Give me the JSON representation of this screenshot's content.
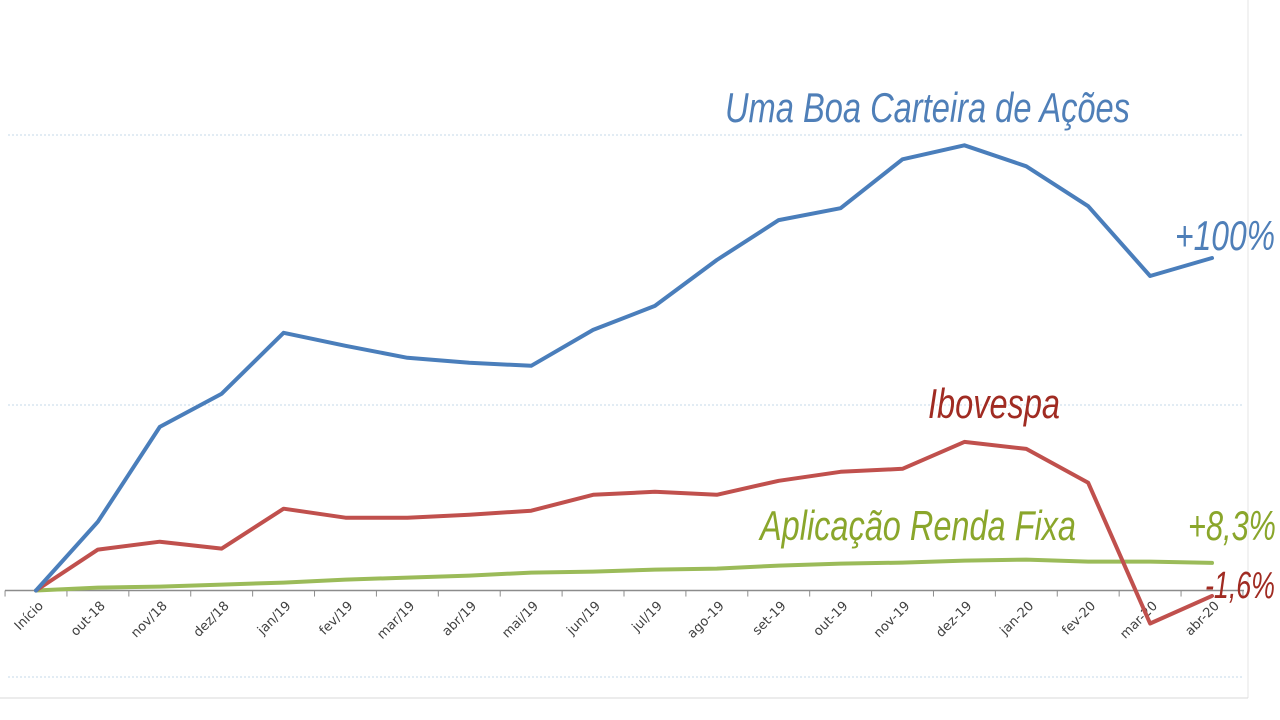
{
  "chart_data": {
    "type": "line",
    "categories": [
      "Início",
      "out-18",
      "nov/18",
      "dez/18",
      "jan/19",
      "fev/19",
      "mar/19",
      "abr/19",
      "mai/19",
      "jun/19",
      "jul/19",
      "ago-19",
      "set-19",
      "out-19",
      "nov-19",
      "dez-19",
      "jan-20",
      "fev-20",
      "mar-20",
      "abr-20"
    ],
    "series": [
      {
        "name": "Uma Boa Carteira de Ações",
        "color": "#4a7ebb",
        "values": [
          0,
          20.7,
          49.2,
          59.2,
          77.5,
          73.6,
          70.0,
          68.5,
          67.6,
          78.4,
          85.6,
          99.4,
          111.4,
          115.0,
          129.7,
          133.9,
          127.6,
          115.6,
          94.6,
          100
        ]
      },
      {
        "name": "Ibovespa",
        "color": "#c0504d",
        "values": [
          0,
          12.3,
          14.7,
          12.6,
          24.6,
          21.9,
          21.9,
          22.8,
          24.0,
          28.8,
          29.7,
          28.8,
          33.0,
          35.7,
          36.6,
          44.7,
          42.6,
          32.4,
          -9.9,
          -1.6
        ]
      },
      {
        "name": "Aplicação Renda Fixa",
        "color": "#9bbb59",
        "values": [
          0,
          0.9,
          1.2,
          1.8,
          2.4,
          3.3,
          3.9,
          4.5,
          5.4,
          5.7,
          6.3,
          6.6,
          7.5,
          8.1,
          8.4,
          9.0,
          9.3,
          8.7,
          8.7,
          8.3
        ]
      }
    ],
    "end_labels": [
      "+100%",
      "-1,6%",
      "+8,3%"
    ],
    "label_colors": [
      "#4f7fb8",
      "#a02b22",
      "#8aa62b"
    ],
    "ylim": [
      -26,
      137
    ],
    "grid": true,
    "xlabel": "",
    "ylabel": "",
    "title": ""
  }
}
